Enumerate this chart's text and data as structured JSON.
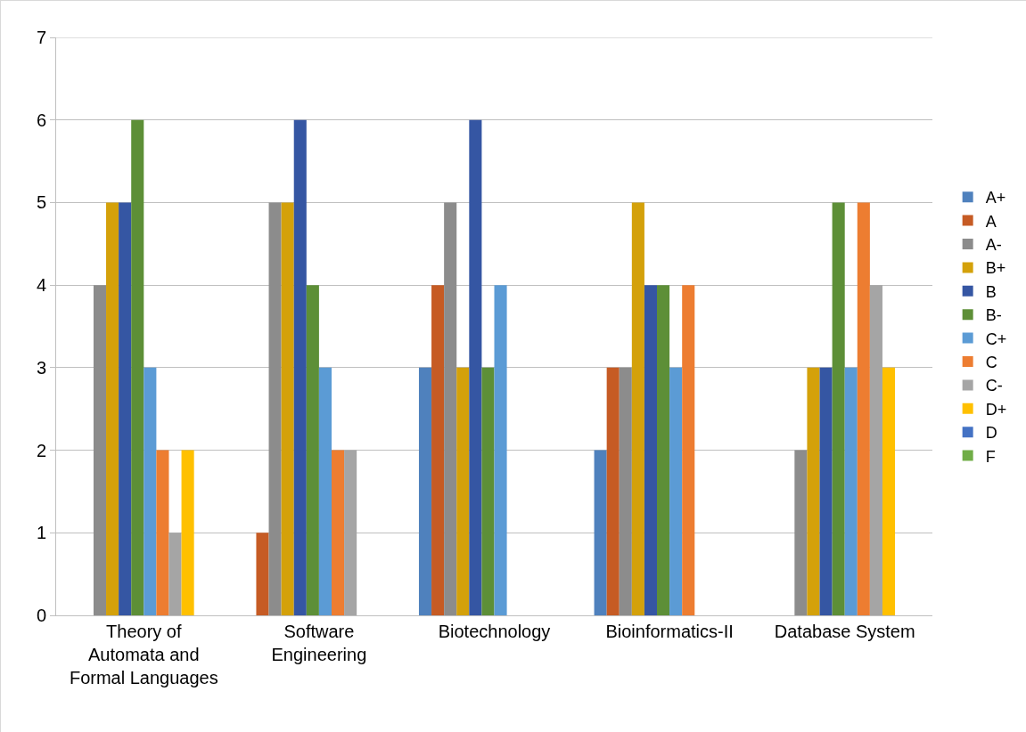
{
  "chart_data": {
    "type": "bar",
    "categories": [
      "Theory of Automata and Formal Languages",
      "Software Engineering",
      "Biotechnology",
      "Bioinformatics-II",
      "Database System"
    ],
    "series": [
      {
        "name": "A+",
        "color": "#4f81bd",
        "values": [
          0,
          0,
          3,
          2,
          0
        ]
      },
      {
        "name": "A",
        "color": "#c65b24",
        "values": [
          0,
          1,
          4,
          3,
          0
        ]
      },
      {
        "name": "A-",
        "color": "#8c8c8c",
        "values": [
          4,
          5,
          5,
          3,
          2
        ]
      },
      {
        "name": "B+",
        "color": "#d4a10a",
        "values": [
          5,
          5,
          3,
          5,
          3
        ]
      },
      {
        "name": "B",
        "color": "#3556a3",
        "values": [
          5,
          6,
          6,
          4,
          3
        ]
      },
      {
        "name": "B-",
        "color": "#5d8f37",
        "values": [
          6,
          4,
          3,
          4,
          5
        ]
      },
      {
        "name": "C+",
        "color": "#5b9bd5",
        "values": [
          3,
          3,
          4,
          3,
          3
        ]
      },
      {
        "name": "C",
        "color": "#ed7d31",
        "values": [
          2,
          2,
          0,
          4,
          5
        ]
      },
      {
        "name": "C-",
        "color": "#a5a5a5",
        "values": [
          1,
          2,
          0,
          0,
          4
        ]
      },
      {
        "name": "D+",
        "color": "#ffc000",
        "values": [
          2,
          0,
          0,
          0,
          3
        ]
      },
      {
        "name": "D",
        "color": "#4472c4",
        "values": [
          0,
          0,
          0,
          0,
          0
        ]
      },
      {
        "name": "F",
        "color": "#70ad47",
        "values": [
          0,
          0,
          0,
          0,
          0
        ]
      }
    ],
    "ylim": [
      0,
      7
    ],
    "yticks": [
      0,
      1,
      2,
      3,
      4,
      5,
      6,
      7
    ],
    "grid": "y",
    "legend": "right"
  }
}
